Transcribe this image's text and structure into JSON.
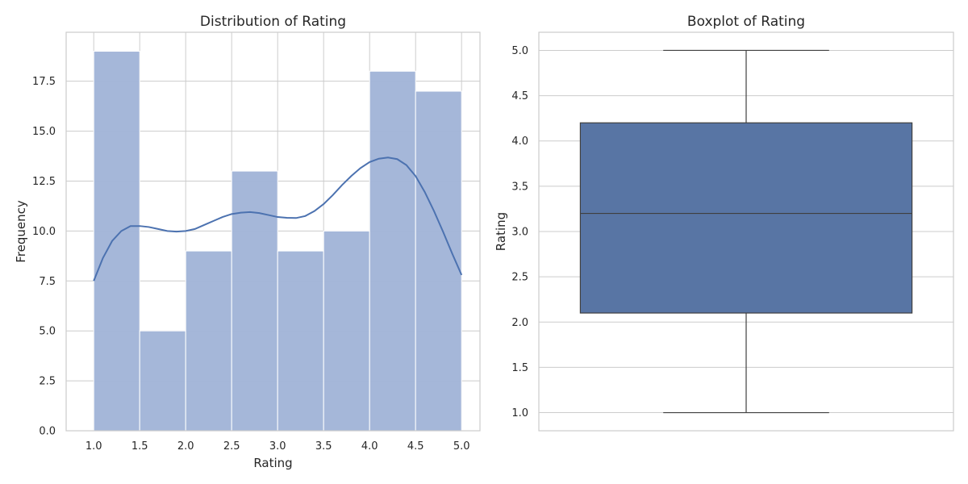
{
  "chart_data": [
    {
      "type": "bar",
      "subtype": "histogram",
      "title": "Distribution of Rating",
      "xlabel": "Rating",
      "ylabel": "Frequency",
      "bin_edges": [
        1.0,
        1.5,
        2.0,
        2.5,
        3.0,
        3.5,
        4.0,
        4.5,
        5.0
      ],
      "values": [
        19,
        5,
        9,
        13,
        9,
        10,
        18,
        17
      ],
      "xlim": [
        0.7,
        5.2
      ],
      "ylim": [
        0,
        19.95
      ],
      "xticks": [
        "1.0",
        "1.5",
        "2.0",
        "2.5",
        "3.0",
        "3.5",
        "4.0",
        "4.5",
        "5.0"
      ],
      "yticks": [
        "0.0",
        "2.5",
        "5.0",
        "7.5",
        "10.0",
        "12.5",
        "15.0",
        "17.5"
      ],
      "grid": true,
      "bar_color": "#a3b6d8",
      "kde_color": "#4c72b0",
      "kde": {
        "x": [
          1.0,
          1.1,
          1.2,
          1.3,
          1.4,
          1.5,
          1.6,
          1.7,
          1.8,
          1.9,
          2.0,
          2.1,
          2.2,
          2.3,
          2.4,
          2.5,
          2.6,
          2.7,
          2.8,
          2.9,
          3.0,
          3.1,
          3.2,
          3.3,
          3.4,
          3.5,
          3.6,
          3.7,
          3.8,
          3.9,
          4.0,
          4.1,
          4.2,
          4.3,
          4.4,
          4.5,
          4.6,
          4.7,
          4.8,
          4.9,
          5.0
        ],
        "y": [
          7.5,
          8.65,
          9.5,
          10.0,
          10.25,
          10.25,
          10.2,
          10.1,
          10.0,
          9.97,
          10.0,
          10.1,
          10.3,
          10.5,
          10.7,
          10.85,
          10.92,
          10.95,
          10.9,
          10.8,
          10.7,
          10.66,
          10.65,
          10.75,
          11.0,
          11.35,
          11.8,
          12.3,
          12.75,
          13.15,
          13.45,
          13.62,
          13.68,
          13.6,
          13.3,
          12.75,
          11.95,
          11.0,
          9.95,
          8.85,
          7.8
        ]
      }
    },
    {
      "type": "boxplot",
      "title": "Boxplot of Rating",
      "xlabel": "",
      "ylabel": "Rating",
      "min": 1.0,
      "q1": 2.1,
      "median": 3.2,
      "q3": 4.2,
      "max": 5.0,
      "ylim": [
        0.8,
        5.2
      ],
      "yticks": [
        "1.0",
        "1.5",
        "2.0",
        "2.5",
        "3.0",
        "3.5",
        "4.0",
        "4.5",
        "5.0"
      ],
      "grid": true,
      "box_color": "#5875a4",
      "line_color": "#3f3f3f"
    }
  ]
}
